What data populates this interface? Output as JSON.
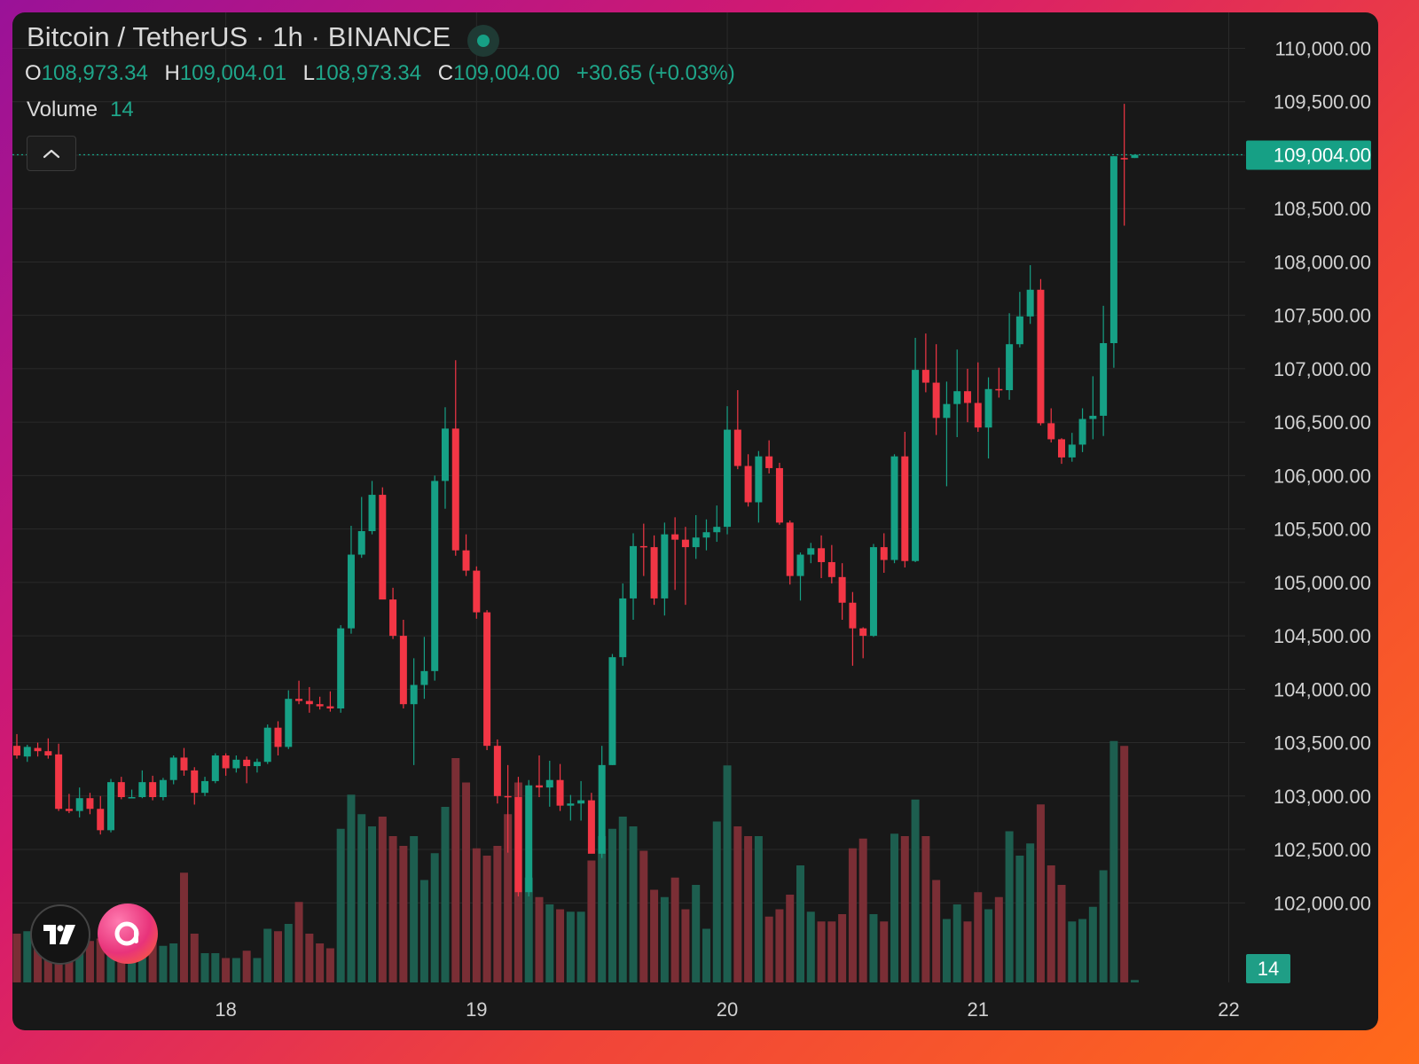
{
  "header": {
    "title": "Bitcoin / TetherUS · 1h · BINANCE",
    "ohlc": [
      {
        "key": "O",
        "value": "108,973.34"
      },
      {
        "key": "H",
        "value": "109,004.01"
      },
      {
        "key": "L",
        "value": "108,973.34"
      },
      {
        "key": "C",
        "value": "109,004.00"
      }
    ],
    "change": "+30.65 (+0.03%)",
    "volume_label": "Volume",
    "volume_value": "14"
  },
  "colors": {
    "up": "#16a085",
    "down": "#f23645",
    "background": "#181818",
    "grid": "#2a2a2a",
    "axis_text": "#d1d1d1"
  },
  "icons": {
    "collapse": "chevron-up-icon",
    "tradingview_logo": "tradingview-logo-icon",
    "app_logo": "app-logo-icon"
  },
  "chart_data": {
    "type": "candlestick",
    "title": "Bitcoin / TetherUS · 1h · BINANCE",
    "ylim": [
      101300,
      110100
    ],
    "y_ticks": [
      102000,
      102500,
      103000,
      103500,
      104000,
      104500,
      105000,
      105500,
      106000,
      106500,
      107000,
      107500,
      108000,
      108500,
      109000,
      109500,
      110000
    ],
    "y_tick_labels": [
      "102,000.00",
      "102,500.00",
      "103,000.00",
      "103,500.00",
      "104,000.00",
      "104,500.00",
      "105,000.00",
      "105,500.00",
      "106,000.00",
      "106,500.00",
      "107,000.00",
      "107,500.00",
      "108,000.00",
      "108,500.00",
      "109,000.00",
      "109,500.00",
      "110,000.00"
    ],
    "x_ticks": [
      {
        "label": "18",
        "bar": 20
      },
      {
        "label": "19",
        "bar": 44
      },
      {
        "label": "20",
        "bar": 68
      },
      {
        "label": "21",
        "bar": 92
      },
      {
        "label": "22",
        "bar": 116
      }
    ],
    "last_price": 109004.0,
    "last_price_label": "109,004.00",
    "last_volume_label": "14",
    "volume_max": 100,
    "candles": [
      {
        "o": 103470,
        "h": 103580,
        "l": 103350,
        "c": 103380,
        "v": 20
      },
      {
        "o": 103370,
        "h": 103480,
        "l": 103320,
        "c": 103460,
        "v": 21
      },
      {
        "o": 103450,
        "h": 103500,
        "l": 103370,
        "c": 103420,
        "v": 20
      },
      {
        "o": 103420,
        "h": 103540,
        "l": 103350,
        "c": 103380,
        "v": 21
      },
      {
        "o": 103390,
        "h": 103490,
        "l": 102860,
        "c": 102880,
        "v": 21
      },
      {
        "o": 102880,
        "h": 103020,
        "l": 102840,
        "c": 102860,
        "v": 20
      },
      {
        "o": 102860,
        "h": 103080,
        "l": 102800,
        "c": 102980,
        "v": 20
      },
      {
        "o": 102980,
        "h": 103030,
        "l": 102830,
        "c": 102880,
        "v": 17
      },
      {
        "o": 102880,
        "h": 103000,
        "l": 102640,
        "c": 102680,
        "v": 18
      },
      {
        "o": 102680,
        "h": 103160,
        "l": 102660,
        "c": 103130,
        "v": 15
      },
      {
        "o": 103130,
        "h": 103180,
        "l": 102970,
        "c": 102990,
        "v": 17
      },
      {
        "o": 102990,
        "h": 103060,
        "l": 102980,
        "c": 102990,
        "v": 18
      },
      {
        "o": 102990,
        "h": 103240,
        "l": 102980,
        "c": 103130,
        "v": 20
      },
      {
        "o": 103130,
        "h": 103190,
        "l": 102960,
        "c": 102990,
        "v": 17
      },
      {
        "o": 102990,
        "h": 103170,
        "l": 102960,
        "c": 103150,
        "v": 15
      },
      {
        "o": 103150,
        "h": 103380,
        "l": 103110,
        "c": 103360,
        "v": 16
      },
      {
        "o": 103360,
        "h": 103450,
        "l": 103190,
        "c": 103240,
        "v": 45
      },
      {
        "o": 103240,
        "h": 103270,
        "l": 102920,
        "c": 103030,
        "v": 20
      },
      {
        "o": 103030,
        "h": 103180,
        "l": 103000,
        "c": 103140,
        "v": 12
      },
      {
        "o": 103140,
        "h": 103400,
        "l": 103120,
        "c": 103380,
        "v": 12
      },
      {
        "o": 103380,
        "h": 103400,
        "l": 103190,
        "c": 103260,
        "v": 10
      },
      {
        "o": 103260,
        "h": 103380,
        "l": 103220,
        "c": 103340,
        "v": 10
      },
      {
        "o": 103340,
        "h": 103370,
        "l": 103120,
        "c": 103280,
        "v": 13
      },
      {
        "o": 103280,
        "h": 103350,
        "l": 103220,
        "c": 103320,
        "v": 10
      },
      {
        "o": 103320,
        "h": 103670,
        "l": 103300,
        "c": 103640,
        "v": 22
      },
      {
        "o": 103640,
        "h": 103700,
        "l": 103380,
        "c": 103460,
        "v": 21
      },
      {
        "o": 103460,
        "h": 103990,
        "l": 103440,
        "c": 103910,
        "v": 24
      },
      {
        "o": 103910,
        "h": 104080,
        "l": 103860,
        "c": 103890,
        "v": 33
      },
      {
        "o": 103890,
        "h": 104020,
        "l": 103780,
        "c": 103860,
        "v": 20
      },
      {
        "o": 103860,
        "h": 103930,
        "l": 103810,
        "c": 103840,
        "v": 16
      },
      {
        "o": 103840,
        "h": 103980,
        "l": 103790,
        "c": 103820,
        "v": 14
      },
      {
        "o": 103820,
        "h": 104600,
        "l": 103780,
        "c": 104570,
        "v": 63
      },
      {
        "o": 104570,
        "h": 105530,
        "l": 104520,
        "c": 105260,
        "v": 77
      },
      {
        "o": 105260,
        "h": 105800,
        "l": 105230,
        "c": 105480,
        "v": 69
      },
      {
        "o": 105480,
        "h": 105950,
        "l": 105450,
        "c": 105820,
        "v": 64
      },
      {
        "o": 105820,
        "h": 105890,
        "l": 104900,
        "c": 104840,
        "v": 68
      },
      {
        "o": 104840,
        "h": 104950,
        "l": 104470,
        "c": 104500,
        "v": 60
      },
      {
        "o": 104500,
        "h": 104650,
        "l": 103820,
        "c": 103860,
        "v": 56
      },
      {
        "o": 103860,
        "h": 104290,
        "l": 103290,
        "c": 104040,
        "v": 60
      },
      {
        "o": 104040,
        "h": 104490,
        "l": 103910,
        "c": 104170,
        "v": 42
      },
      {
        "o": 104170,
        "h": 106000,
        "l": 104080,
        "c": 105950,
        "v": 53
      },
      {
        "o": 105950,
        "h": 106640,
        "l": 105690,
        "c": 106440,
        "v": 72
      },
      {
        "o": 106440,
        "h": 107080,
        "l": 105250,
        "c": 105300,
        "v": 92
      },
      {
        "o": 105300,
        "h": 105450,
        "l": 105060,
        "c": 105110,
        "v": 82
      },
      {
        "o": 105110,
        "h": 105150,
        "l": 104660,
        "c": 104720,
        "v": 55
      },
      {
        "o": 104720,
        "h": 104740,
        "l": 103430,
        "c": 103470,
        "v": 52
      },
      {
        "o": 103470,
        "h": 103530,
        "l": 102930,
        "c": 103000,
        "v": 56
      },
      {
        "o": 103000,
        "h": 103290,
        "l": 102470,
        "c": 102990,
        "v": 69
      },
      {
        "o": 102990,
        "h": 103180,
        "l": 102060,
        "c": 102100,
        "v": 82
      },
      {
        "o": 102100,
        "h": 103150,
        "l": 102060,
        "c": 103100,
        "v": 43
      },
      {
        "o": 103100,
        "h": 103380,
        "l": 102990,
        "c": 103080,
        "v": 35
      },
      {
        "o": 103080,
        "h": 103330,
        "l": 102900,
        "c": 103150,
        "v": 32
      },
      {
        "o": 103150,
        "h": 103300,
        "l": 102860,
        "c": 102910,
        "v": 30
      },
      {
        "o": 102910,
        "h": 103010,
        "l": 102770,
        "c": 102930,
        "v": 29
      },
      {
        "o": 102930,
        "h": 103140,
        "l": 102770,
        "c": 102960,
        "v": 29
      },
      {
        "o": 102960,
        "h": 103030,
        "l": 102500,
        "c": 102460,
        "v": 50
      },
      {
        "o": 102460,
        "h": 103470,
        "l": 102420,
        "c": 103290,
        "v": 60
      },
      {
        "o": 103290,
        "h": 104330,
        "l": 103290,
        "c": 104300,
        "v": 63
      },
      {
        "o": 104300,
        "h": 104990,
        "l": 104220,
        "c": 104850,
        "v": 68
      },
      {
        "o": 104850,
        "h": 105460,
        "l": 104650,
        "c": 105340,
        "v": 64
      },
      {
        "o": 105340,
        "h": 105550,
        "l": 105060,
        "c": 105330,
        "v": 54
      },
      {
        "o": 105330,
        "h": 105440,
        "l": 104790,
        "c": 104850,
        "v": 38
      },
      {
        "o": 104850,
        "h": 105560,
        "l": 104690,
        "c": 105450,
        "v": 35
      },
      {
        "o": 105450,
        "h": 105610,
        "l": 104930,
        "c": 105400,
        "v": 43
      },
      {
        "o": 105400,
        "h": 105520,
        "l": 104790,
        "c": 105330,
        "v": 30
      },
      {
        "o": 105330,
        "h": 105630,
        "l": 105220,
        "c": 105420,
        "v": 40
      },
      {
        "o": 105420,
        "h": 105590,
        "l": 105300,
        "c": 105470,
        "v": 22
      },
      {
        "o": 105470,
        "h": 105720,
        "l": 105380,
        "c": 105520,
        "v": 66
      },
      {
        "o": 105520,
        "h": 106650,
        "l": 105450,
        "c": 106430,
        "v": 89
      },
      {
        "o": 106430,
        "h": 106800,
        "l": 106060,
        "c": 106090,
        "v": 64
      },
      {
        "o": 106090,
        "h": 106200,
        "l": 105710,
        "c": 105750,
        "v": 60
      },
      {
        "o": 105750,
        "h": 106230,
        "l": 105560,
        "c": 106180,
        "v": 60
      },
      {
        "o": 106180,
        "h": 106330,
        "l": 106020,
        "c": 106070,
        "v": 27
      },
      {
        "o": 106070,
        "h": 106120,
        "l": 105540,
        "c": 105560,
        "v": 30
      },
      {
        "o": 105560,
        "h": 105580,
        "l": 104980,
        "c": 105060,
        "v": 36
      },
      {
        "o": 105060,
        "h": 105280,
        "l": 104830,
        "c": 105260,
        "v": 48
      },
      {
        "o": 105260,
        "h": 105370,
        "l": 105180,
        "c": 105320,
        "v": 29
      },
      {
        "o": 105320,
        "h": 105440,
        "l": 105040,
        "c": 105190,
        "v": 25
      },
      {
        "o": 105190,
        "h": 105350,
        "l": 104990,
        "c": 105050,
        "v": 25
      },
      {
        "o": 105050,
        "h": 105180,
        "l": 104650,
        "c": 104810,
        "v": 28
      },
      {
        "o": 104810,
        "h": 104910,
        "l": 104220,
        "c": 104570,
        "v": 55
      },
      {
        "o": 104570,
        "h": 104580,
        "l": 104290,
        "c": 104500,
        "v": 59
      },
      {
        "o": 104500,
        "h": 105360,
        "l": 104490,
        "c": 105330,
        "v": 28
      },
      {
        "o": 105330,
        "h": 105460,
        "l": 105090,
        "c": 105210,
        "v": 25
      },
      {
        "o": 105210,
        "h": 106200,
        "l": 105180,
        "c": 106180,
        "v": 61
      },
      {
        "o": 106180,
        "h": 106410,
        "l": 105140,
        "c": 105200,
        "v": 60
      },
      {
        "o": 105200,
        "h": 107290,
        "l": 105190,
        "c": 106990,
        "v": 75
      },
      {
        "o": 106990,
        "h": 107330,
        "l": 106780,
        "c": 106870,
        "v": 60
      },
      {
        "o": 106870,
        "h": 107230,
        "l": 106380,
        "c": 106540,
        "v": 42
      },
      {
        "o": 106540,
        "h": 106880,
        "l": 105900,
        "c": 106670,
        "v": 26
      },
      {
        "o": 106670,
        "h": 107180,
        "l": 106360,
        "c": 106790,
        "v": 32
      },
      {
        "o": 106790,
        "h": 107000,
        "l": 106500,
        "c": 106680,
        "v": 25
      },
      {
        "o": 106680,
        "h": 107060,
        "l": 106410,
        "c": 106450,
        "v": 37
      },
      {
        "o": 106450,
        "h": 106920,
        "l": 106160,
        "c": 106810,
        "v": 30
      },
      {
        "o": 106810,
        "h": 107010,
        "l": 106730,
        "c": 106800,
        "v": 35
      },
      {
        "o": 106800,
        "h": 107520,
        "l": 106710,
        "c": 107230,
        "v": 62
      },
      {
        "o": 107230,
        "h": 107720,
        "l": 107200,
        "c": 107490,
        "v": 52
      },
      {
        "o": 107490,
        "h": 107970,
        "l": 107420,
        "c": 107740,
        "v": 57
      },
      {
        "o": 107740,
        "h": 107840,
        "l": 106470,
        "c": 106490,
        "v": 73
      },
      {
        "o": 106490,
        "h": 106630,
        "l": 106310,
        "c": 106340,
        "v": 48
      },
      {
        "o": 106340,
        "h": 106350,
        "l": 106110,
        "c": 106170,
        "v": 40
      },
      {
        "o": 106170,
        "h": 106400,
        "l": 106130,
        "c": 106290,
        "v": 25
      },
      {
        "o": 106290,
        "h": 106630,
        "l": 106220,
        "c": 106530,
        "v": 26
      },
      {
        "o": 106530,
        "h": 106930,
        "l": 106340,
        "c": 106560,
        "v": 31
      },
      {
        "o": 106560,
        "h": 107590,
        "l": 106370,
        "c": 107240,
        "v": 46
      },
      {
        "o": 107240,
        "h": 108990,
        "l": 107010,
        "c": 108990,
        "v": 99
      },
      {
        "o": 108973.34,
        "h": 109480,
        "l": 108340,
        "c": 108960,
        "v": 97
      },
      {
        "o": 108973.34,
        "h": 109004.01,
        "l": 108973.34,
        "c": 109004.0,
        "v": 1
      }
    ]
  }
}
